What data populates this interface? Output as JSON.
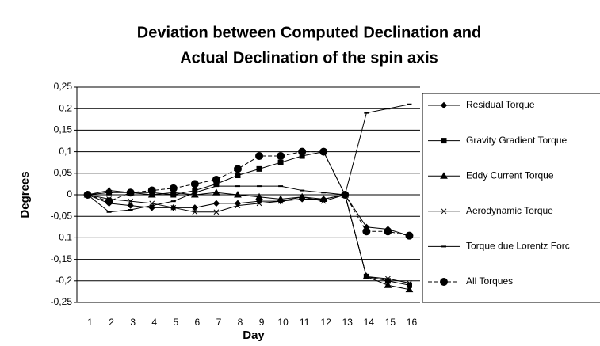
{
  "chart_data": {
    "type": "line",
    "title": [
      "Deviation between Computed Declination  and",
      "Actual Declination of the spin axis"
    ],
    "xlabel": "Day",
    "ylabel": "Degrees",
    "categories": [
      1,
      2,
      3,
      4,
      5,
      6,
      7,
      8,
      9,
      10,
      11,
      12,
      13,
      14,
      15,
      16
    ],
    "ylim": [
      -0.25,
      0.25
    ],
    "yticks": [
      {
        "value": 0.25,
        "label": "0,25"
      },
      {
        "value": 0.2,
        "label": "0,2"
      },
      {
        "value": 0.15,
        "label": "0,15"
      },
      {
        "value": 0.1,
        "label": "0,1"
      },
      {
        "value": 0.05,
        "label": "0,05"
      },
      0,
      {
        "value": -0.05,
        "label": "-0,05"
      },
      {
        "value": -0.1,
        "label": "-0,1"
      },
      {
        "value": -0.15,
        "label": "-0,15"
      },
      {
        "value": -0.2,
        "label": "-0,2"
      },
      {
        "value": -0.25,
        "label": "-0,25"
      }
    ],
    "grid": true,
    "legend": "right",
    "series": [
      {
        "name": "Residual Torque",
        "color": "#000000",
        "marker": "diamond",
        "dashed": false,
        "values": [
          0,
          -0.02,
          -0.025,
          -0.03,
          -0.03,
          -0.03,
          -0.02,
          -0.02,
          -0.015,
          -0.015,
          -0.01,
          -0.01,
          0,
          -0.075,
          -0.08,
          -0.095
        ]
      },
      {
        "name": "Gravity Gradient Torque",
        "color": "#000000",
        "marker": "square",
        "dashed": false,
        "values": [
          0,
          0.005,
          0.005,
          0.005,
          0,
          0.01,
          0.025,
          0.045,
          0.06,
          0.075,
          0.09,
          0.1,
          0,
          -0.19,
          -0.2,
          -0.21
        ]
      },
      {
        "name": "Eddy Current Torque",
        "color": "#000000",
        "marker": "triangle",
        "dashed": false,
        "values": [
          0,
          0.01,
          0.005,
          0,
          0.005,
          0,
          0.005,
          0,
          -0.005,
          -0.01,
          -0.005,
          -0.01,
          0,
          -0.19,
          -0.21,
          -0.22
        ]
      },
      {
        "name": "Aerodynamic Torque",
        "color": "#000000",
        "marker": "x",
        "dashed": false,
        "values": [
          0,
          -0.01,
          -0.015,
          -0.02,
          -0.03,
          -0.04,
          -0.04,
          -0.025,
          -0.02,
          -0.015,
          -0.005,
          -0.015,
          0,
          -0.19,
          -0.195,
          -0.205
        ]
      },
      {
        "name": "Torque due Lorentz Forc",
        "color": "#000000",
        "marker": "dash",
        "dashed": false,
        "values": [
          0,
          -0.04,
          -0.035,
          -0.025,
          -0.015,
          0.005,
          0.02,
          0.02,
          0.02,
          0.02,
          0.01,
          0.005,
          0,
          0.19,
          0.2,
          0.21
        ]
      },
      {
        "name": "All Torques",
        "color": "#000000",
        "marker": "circle",
        "dashed": true,
        "values": [
          0,
          -0.015,
          0.005,
          0.01,
          0.015,
          0.025,
          0.035,
          0.06,
          0.09,
          0.09,
          0.1,
          0.1,
          0,
          -0.085,
          -0.085,
          -0.095
        ]
      }
    ]
  }
}
